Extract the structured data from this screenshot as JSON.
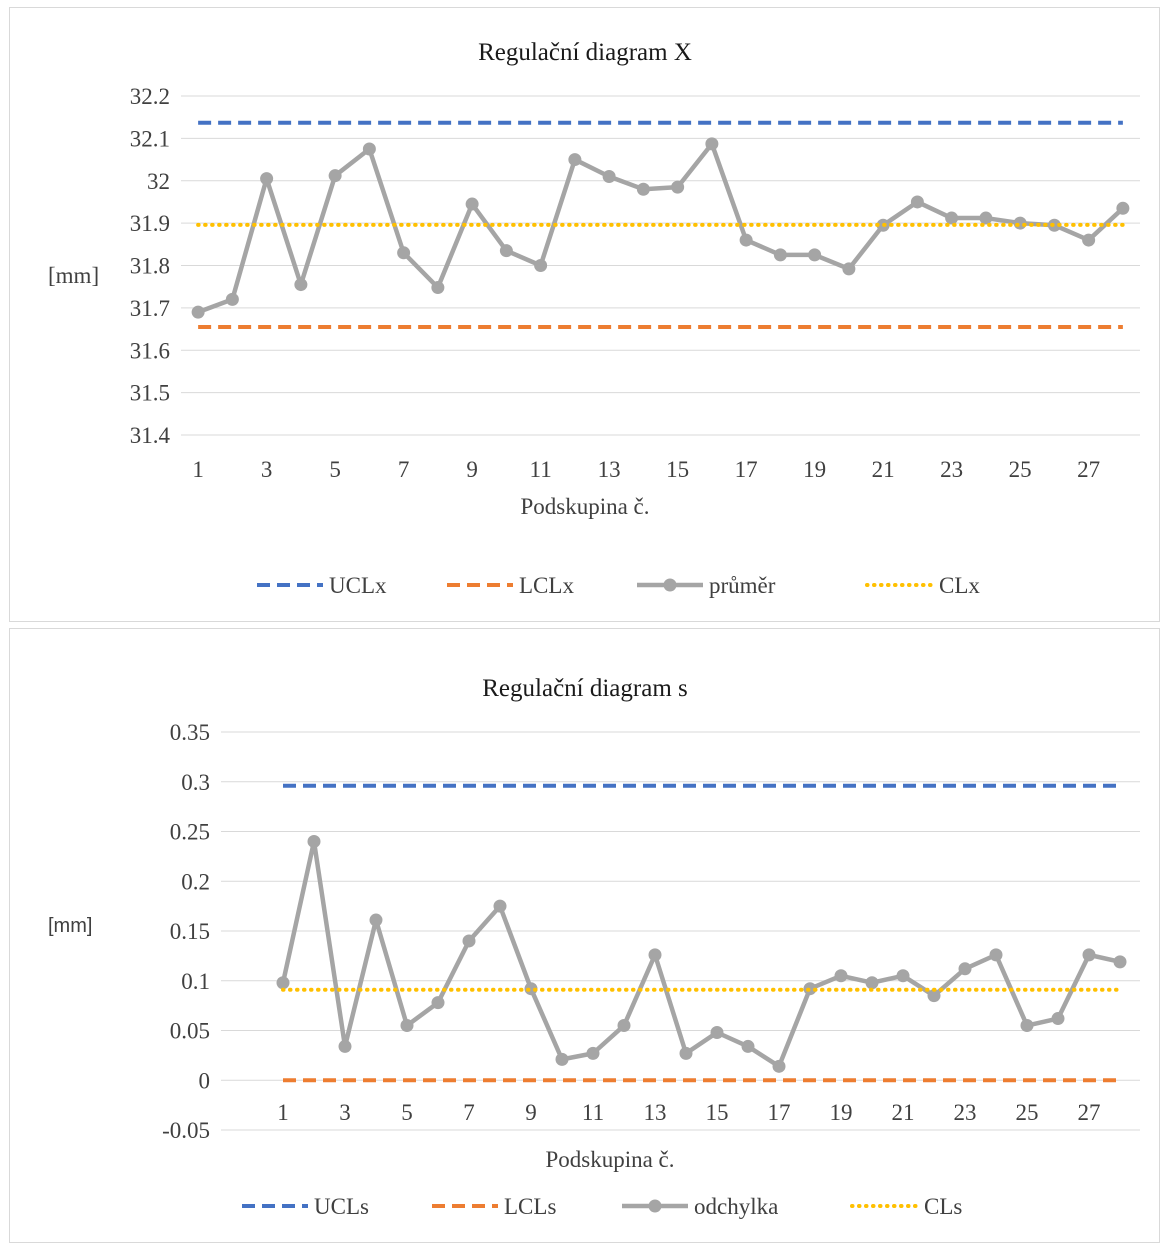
{
  "chart_data": [
    {
      "type": "line",
      "title": "Regulační diagram X",
      "xlabel": "Podskupina č.",
      "ylabel": "[mm]",
      "ylim": [
        31.4,
        32.2
      ],
      "ytick_step": 0.1,
      "y_tick_labels": [
        "31.4",
        "31.5",
        "31.6",
        "31.7",
        "31.8",
        "31.9",
        "32",
        "32.1",
        "32.2"
      ],
      "x": [
        1,
        2,
        3,
        4,
        5,
        6,
        7,
        8,
        9,
        10,
        11,
        12,
        13,
        14,
        15,
        16,
        17,
        18,
        19,
        20,
        21,
        22,
        23,
        24,
        25,
        26,
        27,
        28
      ],
      "x_tick_labels": [
        "1",
        "3",
        "5",
        "7",
        "9",
        "11",
        "13",
        "15",
        "17",
        "19",
        "21",
        "23",
        "25",
        "27"
      ],
      "grid": true,
      "legend_position": "bottom",
      "series": [
        {
          "name": "UCLx",
          "style": "dashed",
          "color": "#4472c4",
          "values": [
            32.137,
            32.137,
            32.137,
            32.137,
            32.137,
            32.137,
            32.137,
            32.137,
            32.137,
            32.137,
            32.137,
            32.137,
            32.137,
            32.137,
            32.137,
            32.137,
            32.137,
            32.137,
            32.137,
            32.137,
            32.137,
            32.137,
            32.137,
            32.137,
            32.137,
            32.137,
            32.137,
            32.137
          ]
        },
        {
          "name": "LCLx",
          "style": "dashed",
          "color": "#ed7d31",
          "values": [
            31.655,
            31.655,
            31.655,
            31.655,
            31.655,
            31.655,
            31.655,
            31.655,
            31.655,
            31.655,
            31.655,
            31.655,
            31.655,
            31.655,
            31.655,
            31.655,
            31.655,
            31.655,
            31.655,
            31.655,
            31.655,
            31.655,
            31.655,
            31.655,
            31.655,
            31.655,
            31.655,
            31.655
          ]
        },
        {
          "name": "průměr",
          "style": "marker-line",
          "color": "#a5a5a5",
          "values": [
            31.69,
            31.72,
            32.005,
            31.755,
            32.012,
            32.075,
            31.83,
            31.748,
            31.945,
            31.835,
            31.8,
            32.05,
            32.01,
            31.98,
            31.985,
            32.087,
            31.86,
            31.825,
            31.825,
            31.792,
            31.895,
            31.95,
            31.912,
            31.912,
            31.9,
            31.895,
            31.86,
            31.935
          ]
        },
        {
          "name": "CLx",
          "style": "dotted",
          "color": "#ffc000",
          "values": [
            31.896,
            31.896,
            31.896,
            31.896,
            31.896,
            31.896,
            31.896,
            31.896,
            31.896,
            31.896,
            31.896,
            31.896,
            31.896,
            31.896,
            31.896,
            31.896,
            31.896,
            31.896,
            31.896,
            31.896,
            31.896,
            31.896,
            31.896,
            31.896,
            31.896,
            31.896,
            31.896,
            31.896
          ]
        }
      ]
    },
    {
      "type": "line",
      "title": "Regulační diagram s",
      "xlabel": "Podskupina č.",
      "ylabel": "[mm]",
      "ylim": [
        -0.05,
        0.35
      ],
      "ytick_step": 0.05,
      "y_tick_labels": [
        "-0.05",
        "0",
        "0.05",
        "0.1",
        "0.15",
        "0.2",
        "0.25",
        "0.3",
        "0.35"
      ],
      "x": [
        1,
        2,
        3,
        4,
        5,
        6,
        7,
        8,
        9,
        10,
        11,
        12,
        13,
        14,
        15,
        16,
        17,
        18,
        19,
        20,
        21,
        22,
        23,
        24,
        25,
        26,
        27,
        28
      ],
      "x_tick_labels": [
        "1",
        "3",
        "5",
        "7",
        "9",
        "11",
        "13",
        "15",
        "17",
        "19",
        "21",
        "23",
        "25",
        "27"
      ],
      "grid": true,
      "legend_position": "bottom",
      "series": [
        {
          "name": "UCLs",
          "style": "dashed",
          "color": "#4472c4",
          "values": [
            0.296,
            0.296,
            0.296,
            0.296,
            0.296,
            0.296,
            0.296,
            0.296,
            0.296,
            0.296,
            0.296,
            0.296,
            0.296,
            0.296,
            0.296,
            0.296,
            0.296,
            0.296,
            0.296,
            0.296,
            0.296,
            0.296,
            0.296,
            0.296,
            0.296,
            0.296,
            0.296,
            0.296
          ]
        },
        {
          "name": "LCLs",
          "style": "dashed",
          "color": "#ed7d31",
          "values": [
            0,
            0,
            0,
            0,
            0,
            0,
            0,
            0,
            0,
            0,
            0,
            0,
            0,
            0,
            0,
            0,
            0,
            0,
            0,
            0,
            0,
            0,
            0,
            0,
            0,
            0,
            0,
            0
          ]
        },
        {
          "name": "odchylka",
          "style": "marker-line",
          "color": "#a5a5a5",
          "values": [
            0.098,
            0.24,
            0.034,
            0.161,
            0.055,
            0.078,
            0.14,
            0.175,
            0.092,
            0.021,
            0.027,
            0.055,
            0.126,
            0.027,
            0.048,
            0.034,
            0.014,
            0.092,
            0.105,
            0.098,
            0.105,
            0.085,
            0.112,
            0.126,
            0.055,
            0.062,
            0.126,
            0.119
          ]
        },
        {
          "name": "CLs",
          "style": "dotted",
          "color": "#ffc000",
          "values": [
            0.091,
            0.091,
            0.091,
            0.091,
            0.091,
            0.091,
            0.091,
            0.091,
            0.091,
            0.091,
            0.091,
            0.091,
            0.091,
            0.091,
            0.091,
            0.091,
            0.091,
            0.091,
            0.091,
            0.091,
            0.091,
            0.091,
            0.091,
            0.091,
            0.091,
            0.091,
            0.091,
            0.091
          ]
        }
      ]
    }
  ]
}
